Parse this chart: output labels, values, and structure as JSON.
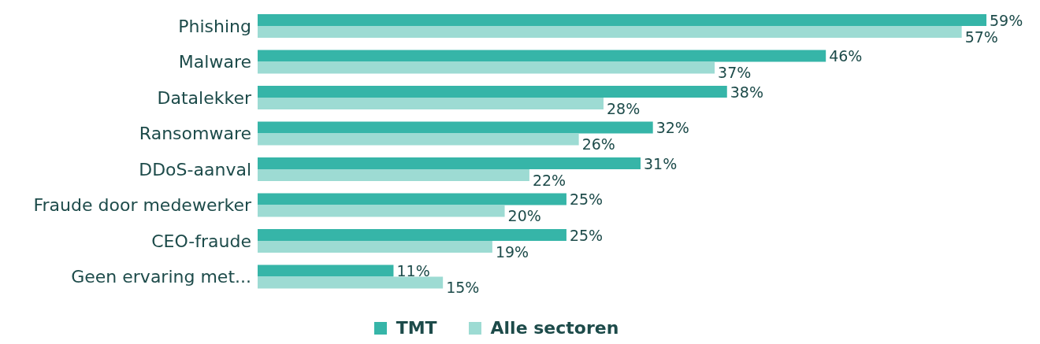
{
  "chart_data": {
    "type": "bar",
    "orientation": "horizontal",
    "categories": [
      "Phishing",
      "Malware",
      "Datalekker",
      "Ransomware",
      "DDoS-aanval",
      "Fraude door medewerker",
      "CEO-fraude",
      "Geen ervaring met..."
    ],
    "series": [
      {
        "name": "TMT",
        "color": "#36b5a8",
        "values": [
          59,
          46,
          38,
          32,
          31,
          25,
          25,
          11
        ],
        "value_labels": [
          "59%",
          "46%",
          "38%",
          "32%",
          "31%",
          "25%",
          "25%",
          "11%"
        ]
      },
      {
        "name": "Alle sectoren",
        "color": "#9ddbd3",
        "values": [
          57,
          37,
          28,
          26,
          22,
          20,
          19,
          15
        ],
        "value_labels": [
          "57%",
          "37%",
          "28%",
          "26%",
          "22%",
          "20%",
          "19%",
          "15%"
        ]
      }
    ],
    "legend": "bottom",
    "grid": false
  }
}
